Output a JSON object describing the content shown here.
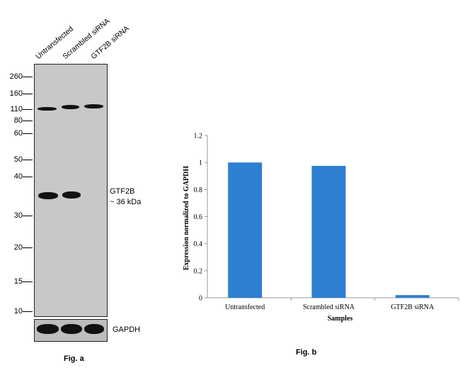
{
  "figure_a": {
    "caption": "Fig. a",
    "lanes": [
      "Untransfected",
      "Scrambled siRNA",
      "GTF2B siRNA"
    ],
    "mw_markers": [
      "260",
      "160",
      "110",
      "80",
      "60",
      "50",
      "40",
      "30",
      "20",
      "15",
      "10"
    ],
    "band_label": "GTF2B",
    "band_size": "~ 36 kDa",
    "loading_control": "GAPDH"
  },
  "figure_b": {
    "caption": "Fig. b"
  },
  "chart_data": {
    "type": "bar",
    "categories": [
      "Untransfected",
      "Scrambled siRNA",
      "GTF2B siRNA"
    ],
    "values": [
      1.0,
      0.975,
      0.02
    ],
    "xlabel": "Samples",
    "ylabel": "Expression normalized to GAPDH",
    "ylim": [
      0,
      1.2
    ],
    "yticks": [
      "0",
      "0.2",
      "0.4",
      "0.6",
      "0.8",
      "1",
      "1.2"
    ],
    "bar_color": "#2e7fd1",
    "grid": false
  }
}
